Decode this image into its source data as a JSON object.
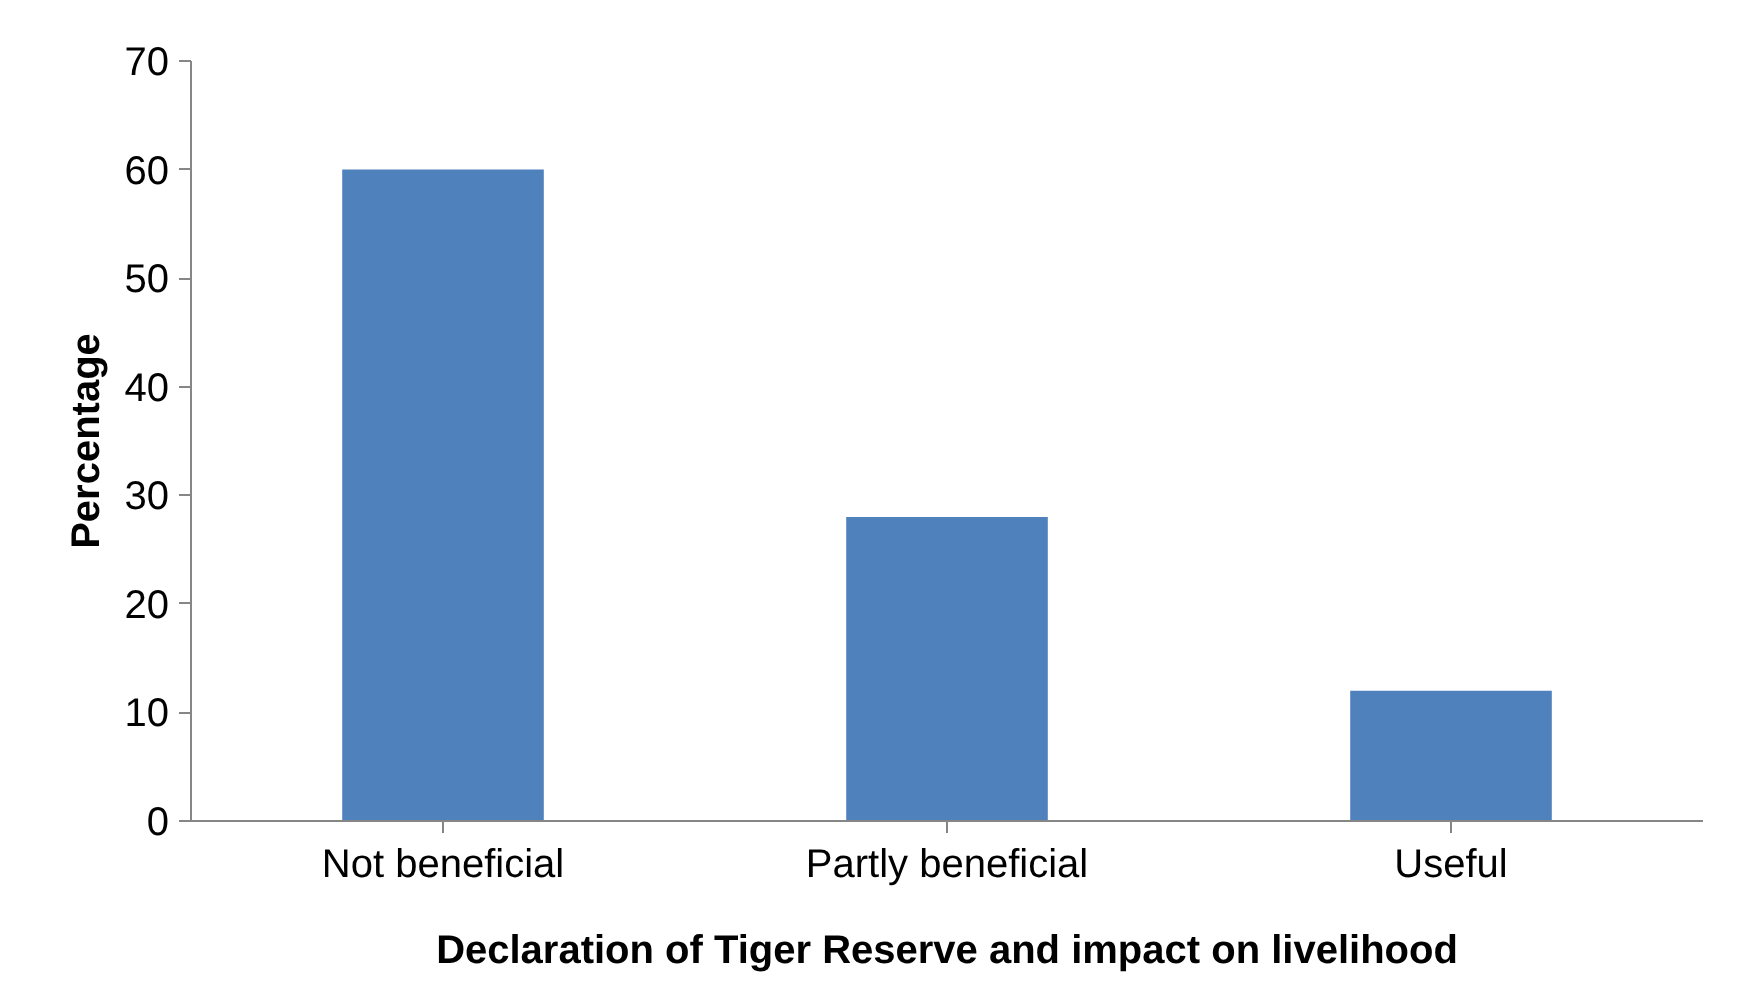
{
  "chart_data": {
    "type": "bar",
    "xlabel": "Declaration of Tiger Reserve and impact on livelihood",
    "ylabel": "Percentage",
    "categories": [
      "Not beneficial",
      "Partly beneficial",
      "Useful"
    ],
    "values": [
      60,
      28,
      12
    ],
    "color": "#4f81bd",
    "ylim": [
      0,
      70
    ],
    "yticks": [
      0,
      10,
      20,
      30,
      40,
      50,
      60,
      70
    ],
    "grid": false
  }
}
